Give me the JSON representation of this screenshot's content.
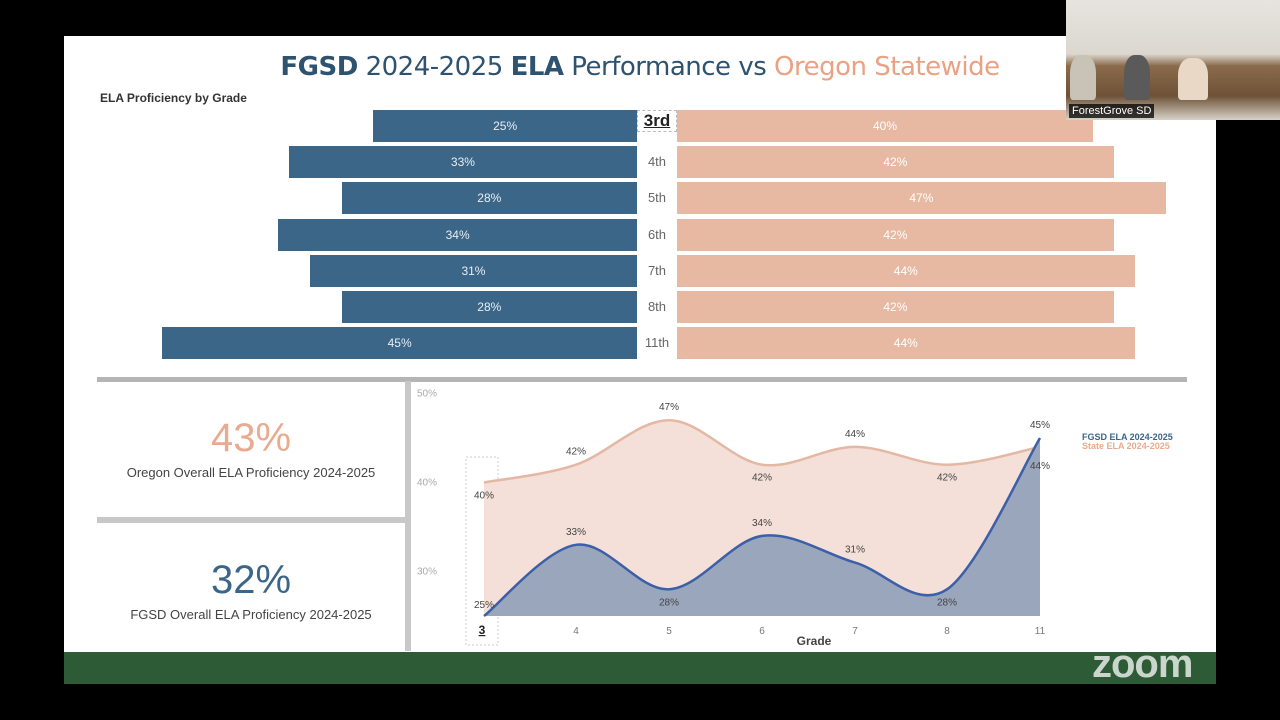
{
  "slide": {
    "title_parts": [
      "FGSD",
      "2024-2025",
      "ELA",
      "Performance vs",
      "Oregon Statewide"
    ],
    "subtitle": "ELA Proficiency by Grade"
  },
  "colors": {
    "fgsd": "#3b6688",
    "state": "#e7b9a3",
    "footer": "#2c5b35"
  },
  "kpis": {
    "oregon": {
      "value": "43%",
      "label": "Oregon Overall ELA Proficiency 2024-2025"
    },
    "fgsd": {
      "value": "32%",
      "label": "FGSD Overall ELA Proficiency 2024-2025"
    }
  },
  "video": {
    "participant": "ForestGrove SD"
  },
  "watermark": "zoom",
  "chart_data": [
    {
      "type": "bar",
      "orientation": "horizontal-butterfly",
      "title": "ELA Proficiency by Grade",
      "categories": [
        "3rd",
        "4th",
        "5th",
        "6th",
        "7th",
        "8th",
        "11th"
      ],
      "selected": "3rd",
      "series": [
        {
          "values": [
            25,
            33,
            28,
            34,
            31,
            28,
            45
          ],
          "labels": [
            "25%",
            "33%",
            "28%",
            "34%",
            "31%",
            "28%",
            "45%"
          ]
        },
        {
          "values": [
            40,
            42,
            47,
            42,
            44,
            42,
            44
          ],
          "labels": [
            "40%",
            "42%",
            "47%",
            "42%",
            "44%",
            "42%",
            "44%"
          ]
        }
      ]
    },
    {
      "type": "area",
      "xlabel": "Grade",
      "categories": [
        "3",
        "4",
        "5",
        "6",
        "7",
        "8",
        "11"
      ],
      "selected": "3",
      "ylim": [
        25,
        50
      ],
      "yticks": [
        "30%",
        "40%",
        "50%"
      ],
      "legend": "right",
      "series": [
        {
          "name": "FGSD ELA 2024-2025",
          "values": [
            25,
            33,
            28,
            34,
            31,
            28,
            45
          ],
          "labels": [
            "25%",
            "33%",
            "28%",
            "34%",
            "31%",
            "28%",
            "45%"
          ]
        },
        {
          "name": "State ELA 2024-2025",
          "values": [
            40,
            42,
            47,
            42,
            44,
            42,
            44
          ],
          "labels": [
            "40%",
            "42%",
            "47%",
            "42%",
            "44%",
            "42%",
            "44%"
          ]
        }
      ]
    }
  ]
}
